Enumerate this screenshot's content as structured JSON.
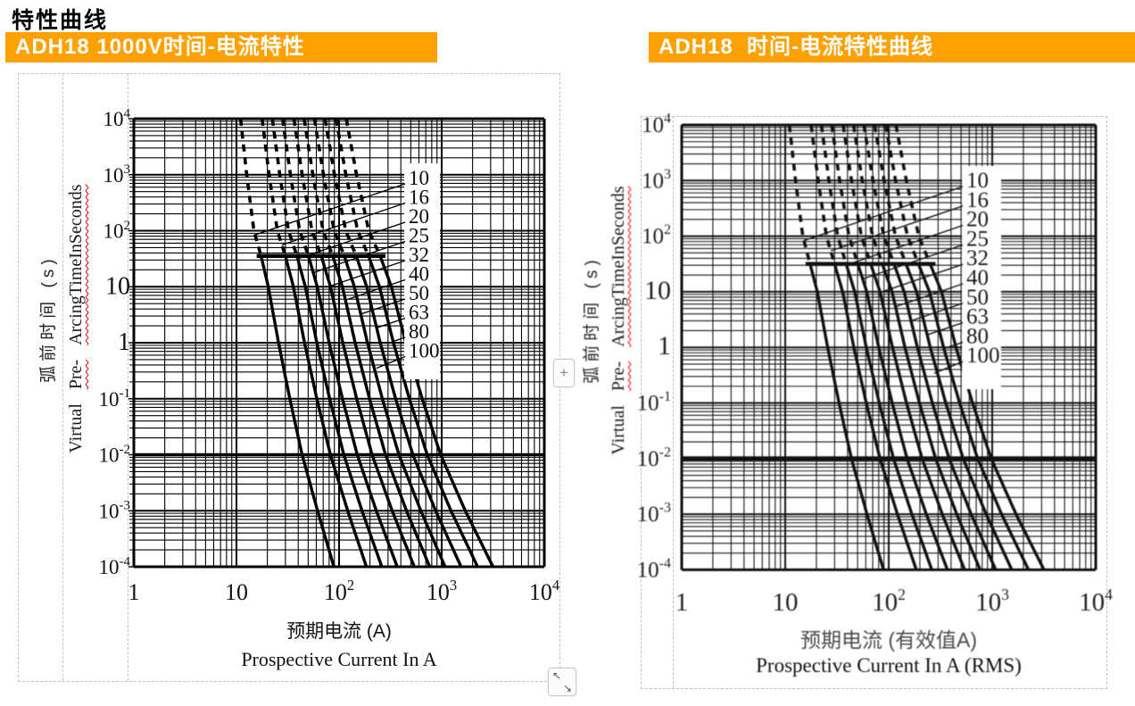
{
  "page": {
    "title": "特性曲线"
  },
  "accent_color": "#FFA100",
  "ui": {
    "plus_button_label": "+",
    "resize_arrow_nw": "↖",
    "resize_arrow_se": "↘"
  },
  "chart_data": [
    {
      "type": "line",
      "title": "ADH18 1000V时间-电流特性",
      "x_scale": "log",
      "y_scale": "log",
      "xlim": [
        1,
        10000
      ],
      "ylim": [
        0.0001,
        10000
      ],
      "grid": "log-log, minor lines 2-9 each decade",
      "x_ticks": [
        "1",
        "10",
        "10^2",
        "10^3",
        "10^4"
      ],
      "y_ticks": [
        "10^4",
        "10^3",
        "10^2",
        "10",
        "1",
        "10^-1",
        "10^-2",
        "10^-3",
        "10^-4"
      ],
      "xlabel_zh": "预期电流 (A)",
      "xlabel_en": "Prospective Current In A",
      "ylabel_zh": "弧前时间 (s)",
      "ylabel_en_parts": [
        "Virtual",
        "Pre-",
        "ArcingTimeInSeconds"
      ],
      "ratings": [
        10,
        16,
        20,
        25,
        32,
        40,
        50,
        63,
        80,
        100
      ],
      "dashed_above_t_exp": 1.55,
      "curve_model": {
        "note": "log10(I) = log10(R) + base + slope*(log10(R)-1) at each time decade",
        "t_exponents": [
          4,
          3,
          2,
          1.55,
          1,
          0,
          -1,
          -2,
          -3,
          -4
        ],
        "base_offsets": [
          0.04,
          0.1,
          0.17,
          0.24,
          0.31,
          0.41,
          0.52,
          0.64,
          0.79,
          0.95
        ],
        "spread_slopes": [
          0.03,
          0.07,
          0.12,
          0.16,
          0.2,
          0.24,
          0.29,
          0.35,
          0.44,
          0.55
        ]
      }
    },
    {
      "type": "line",
      "title": "ADH18  时间-电流特性曲线",
      "x_scale": "log",
      "y_scale": "log",
      "xlim": [
        1,
        10000
      ],
      "ylim": [
        0.0001,
        10000
      ],
      "grid": "log-log, minor lines 2-9 each decade",
      "x_ticks": [
        "1",
        "10",
        "10^2",
        "10^3",
        "10^4"
      ],
      "y_ticks": [
        "10^4",
        "10^3",
        "10^2",
        "10",
        "1",
        "10^-1",
        "10^-2",
        "10^-3",
        "10^-4"
      ],
      "xlabel_zh": "预期电流 (有效值A)",
      "xlabel_en": "Prospective Current In A (RMS)",
      "ylabel_zh": "弧前时间 (s)",
      "ylabel_en_parts": [
        "Virtual",
        "Pre-",
        "ArcingTimeInSeconds"
      ],
      "ratings": [
        10,
        16,
        20,
        25,
        32,
        40,
        50,
        63,
        80,
        100
      ],
      "dashed_above_t_exp": 1.5,
      "curve_model": {
        "note": "log10(I) = log10(R) + base + slope*(log10(R)-1) at each time decade",
        "t_exponents": [
          4,
          3,
          2,
          1.5,
          1,
          0,
          -1,
          -2,
          -3,
          -4
        ],
        "base_offsets": [
          0.04,
          0.1,
          0.17,
          0.24,
          0.31,
          0.41,
          0.52,
          0.64,
          0.79,
          0.95
        ],
        "spread_slopes": [
          0.03,
          0.07,
          0.12,
          0.16,
          0.2,
          0.24,
          0.29,
          0.35,
          0.44,
          0.55
        ]
      }
    }
  ]
}
